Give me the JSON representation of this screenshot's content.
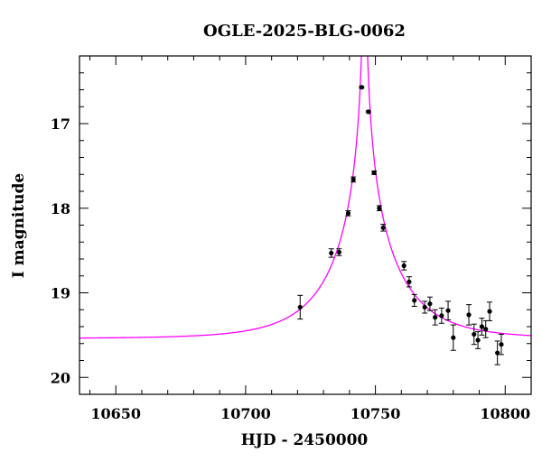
{
  "chart_data": {
    "type": "scatter",
    "title": "OGLE-2025-BLG-0062",
    "xlabel": "HJD - 2450000",
    "ylabel": "I magnitude",
    "xlim": [
      10636,
      10810
    ],
    "ylim": [
      20.2,
      16.2
    ],
    "y_inverted": true,
    "x_major_ticks": [
      10650,
      10700,
      10750,
      10800
    ],
    "x_tick_labels": [
      "10650",
      "10700",
      "10750",
      "10800"
    ],
    "x_minor_step": 10,
    "y_major_ticks": [
      17,
      18,
      19,
      20
    ],
    "y_tick_labels": [
      "17",
      "18",
      "19",
      "20"
    ],
    "y_minor_step": 0.2,
    "grid": false,
    "colors": {
      "model": "#ff00ff",
      "points": "#000000",
      "axes": "#000000"
    },
    "model": {
      "type": "microlensing-pspl",
      "t0": 10745.8,
      "tE": 26,
      "u0": 0.0035,
      "baseline_mag": 19.54,
      "max_mag": 16.15
    },
    "observations": [
      {
        "x": 10721.0,
        "y": 19.17,
        "err": 0.14
      },
      {
        "x": 10733.0,
        "y": 18.53,
        "err": 0.05
      },
      {
        "x": 10736.0,
        "y": 18.52,
        "err": 0.04
      },
      {
        "x": 10739.5,
        "y": 18.06,
        "err": 0.03
      },
      {
        "x": 10741.5,
        "y": 17.66,
        "err": 0.03
      },
      {
        "x": 10744.7,
        "y": 16.57,
        "err": 0.01
      },
      {
        "x": 10747.3,
        "y": 16.86,
        "err": 0.01
      },
      {
        "x": 10749.5,
        "y": 17.58,
        "err": 0.02
      },
      {
        "x": 10751.5,
        "y": 18.0,
        "err": 0.03
      },
      {
        "x": 10753.0,
        "y": 18.23,
        "err": 0.04
      },
      {
        "x": 10761.0,
        "y": 18.68,
        "err": 0.05
      },
      {
        "x": 10763.0,
        "y": 18.87,
        "err": 0.06
      },
      {
        "x": 10765.0,
        "y": 19.09,
        "err": 0.07
      },
      {
        "x": 10769.0,
        "y": 19.17,
        "err": 0.07
      },
      {
        "x": 10771.0,
        "y": 19.13,
        "err": 0.08
      },
      {
        "x": 10773.0,
        "y": 19.29,
        "err": 0.09
      },
      {
        "x": 10775.5,
        "y": 19.27,
        "err": 0.09
      },
      {
        "x": 10778.0,
        "y": 19.21,
        "err": 0.11
      },
      {
        "x": 10780.0,
        "y": 19.53,
        "err": 0.15
      },
      {
        "x": 10786.0,
        "y": 19.26,
        "err": 0.12
      },
      {
        "x": 10788.0,
        "y": 19.49,
        "err": 0.12
      },
      {
        "x": 10789.5,
        "y": 19.56,
        "err": 0.1
      },
      {
        "x": 10791.0,
        "y": 19.4,
        "err": 0.1
      },
      {
        "x": 10792.5,
        "y": 19.43,
        "err": 0.1
      },
      {
        "x": 10794.0,
        "y": 19.22,
        "err": 0.11
      },
      {
        "x": 10797.0,
        "y": 19.71,
        "err": 0.14
      },
      {
        "x": 10798.5,
        "y": 19.61,
        "err": 0.12
      }
    ]
  }
}
